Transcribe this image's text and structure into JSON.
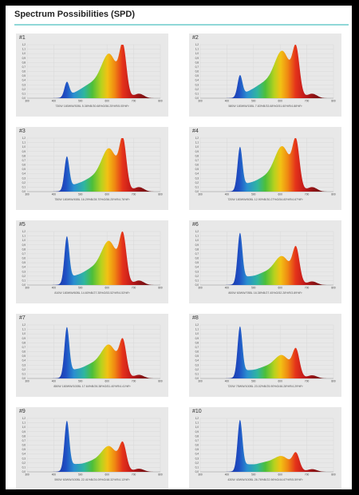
{
  "page": {
    "title": "Spectrum Possibilities (SPD)"
  },
  "y_ticks": [
    "0,0",
    "0,1",
    "0,2",
    "0,3",
    "0,4",
    "0,5",
    "0,6",
    "0,7",
    "0,8",
    "0,9",
    "1,0",
    "1,1",
    "1,2"
  ],
  "x_ticks": [
    "300",
    "400",
    "500",
    "600",
    "700",
    "800"
  ],
  "chart_data": [
    {
      "type": "area",
      "label": "#1",
      "caption": "730W 180WW/30BL 5.38%B/30.68%G/56.25%R/5.05%Fr",
      "xlim": [
        300,
        800
      ],
      "ylim": [
        0,
        1.2
      ],
      "components": {
        "blue": 0.32,
        "green": 0.3,
        "orange": 0.92,
        "red": 1.0,
        "fr": 0.1
      }
    },
    {
      "type": "area",
      "label": "#2",
      "caption": "580W 180WW/15BL 7.83%B/33.68%G/51.60%R/4.88%Fr",
      "xlim": [
        300,
        800
      ],
      "ylim": [
        0,
        1.2
      ],
      "components": {
        "blue": 0.46,
        "green": 0.32,
        "orange": 0.98,
        "red": 0.94,
        "fr": 0.1
      }
    },
    {
      "type": "area",
      "label": "#3",
      "caption": "750W 180WW/45BL 16.29%B/28.70%G/56.25%R/4.76%Fr",
      "xlim": [
        300,
        800
      ],
      "ylim": [
        0,
        1.2
      ],
      "components": {
        "blue": 0.72,
        "green": 0.28,
        "orange": 0.9,
        "red": 1.0,
        "fr": 0.1
      }
    },
    {
      "type": "area",
      "label": "#4",
      "caption": "720W 180WW/60BL 12.90%B/30.27%G/54.83%R/4.67%Fr",
      "xlim": [
        300,
        800
      ],
      "ylim": [
        0,
        1.2
      ],
      "components": {
        "blue": 0.92,
        "green": 0.3,
        "orange": 0.94,
        "red": 0.96,
        "fr": 0.1
      }
    },
    {
      "type": "area",
      "label": "#5",
      "caption": "810W 180WW/60BL 14.60%B/27.35%G/53.52%R/4.53%Fr",
      "xlim": [
        300,
        800
      ],
      "ylim": [
        0,
        1.2
      ],
      "components": {
        "blue": 1.0,
        "green": 0.34,
        "orange": 0.9,
        "red": 0.96,
        "fr": 0.1
      }
    },
    {
      "type": "area",
      "label": "#6",
      "caption": "800W 60WW/78BL 16.38%B/27.45%G/52.28%R/3.89%Fr",
      "xlim": [
        300,
        800
      ],
      "ylim": [
        0,
        1.2
      ],
      "components": {
        "blue": 1.08,
        "green": 0.26,
        "orange": 0.58,
        "red": 0.72,
        "fr": 0.08
      }
    },
    {
      "type": "area",
      "label": "#7",
      "caption": "850W 180WW/100BL 17.64%B/26.38%G/51.40%R/4.41%Fr",
      "xlim": [
        300,
        800
      ],
      "ylim": [
        0,
        1.2
      ],
      "components": {
        "blue": 1.06,
        "green": 0.3,
        "orange": 0.68,
        "red": 0.72,
        "fr": 0.08
      }
    },
    {
      "type": "area",
      "label": "#8",
      "caption": "720W 75WW/100BL 23.02%B/25.90%G/46.28%R/4.29%Fr",
      "xlim": [
        300,
        800
      ],
      "ylim": [
        0,
        1.2
      ],
      "components": {
        "blue": 1.08,
        "green": 0.24,
        "orange": 0.46,
        "red": 0.56,
        "fr": 0.07
      }
    },
    {
      "type": "area",
      "label": "#9",
      "caption": "590W 60WW/100BL 22.41%B/24.09%G/48.32%R/4.13%Fr",
      "xlim": [
        300,
        800
      ],
      "ylim": [
        0,
        1.2
      ],
      "components": {
        "blue": 1.06,
        "green": 0.22,
        "orange": 0.52,
        "red": 0.54,
        "fr": 0.07
      }
    },
    {
      "type": "area",
      "label": "#10",
      "caption": "430W 40WW/100BL 26.76%B/22.96%G/44.67%R/5.59%Fr",
      "xlim": [
        300,
        800
      ],
      "ylim": [
        0,
        1.2
      ],
      "components": {
        "blue": 1.08,
        "green": 0.2,
        "orange": 0.3,
        "red": 0.36,
        "fr": 0.06
      }
    }
  ]
}
